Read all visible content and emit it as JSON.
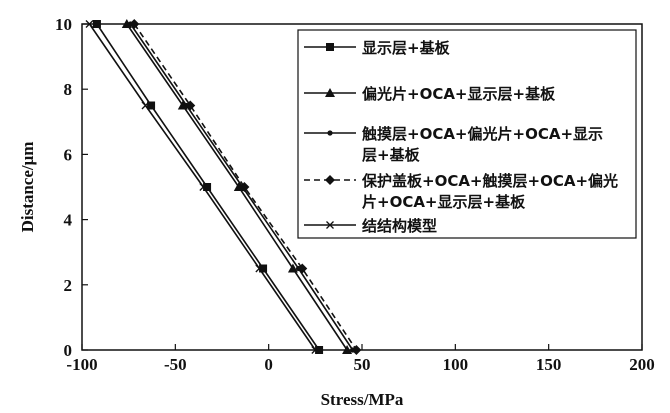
{
  "chart_data": {
    "type": "line",
    "xlabel": "Stress/MPa",
    "ylabel": "Distance/μm",
    "xlim": [
      -100,
      200
    ],
    "ylim": [
      0,
      10
    ],
    "xticks": [
      -100,
      -50,
      0,
      50,
      100,
      150,
      200
    ],
    "yticks": [
      0,
      2,
      4,
      6,
      8,
      10
    ],
    "grid": false,
    "legend_position": "top-right",
    "series": [
      {
        "name": "显示层+基板",
        "marker": "square",
        "dash": "solid",
        "points": [
          [
            -92,
            10
          ],
          [
            -63,
            7.5
          ],
          [
            -33,
            5
          ],
          [
            -3,
            2.5
          ],
          [
            27,
            0
          ]
        ]
      },
      {
        "name": "偏光片+OCA+显示层+基板",
        "marker": "triangle",
        "dash": "solid",
        "points": [
          [
            -76,
            10
          ],
          [
            -46,
            7.5
          ],
          [
            -16,
            5
          ],
          [
            13,
            2.5
          ],
          [
            42,
            0
          ]
        ]
      },
      {
        "name": "触摸层+OCA+偏光片+OCA+显示层+基板",
        "marker": "dot",
        "dash": "solid",
        "points": [
          [
            -74,
            10
          ],
          [
            -44,
            7.5
          ],
          [
            -14,
            5
          ],
          [
            16,
            2.5
          ],
          [
            45,
            0
          ]
        ]
      },
      {
        "name": "保护盖板+OCA+触摸层+OCA+偏光片+OCA+显示层+基板",
        "marker": "diamond",
        "dash": "dashed",
        "points": [
          [
            -72,
            10
          ],
          [
            -42,
            7.5
          ],
          [
            -13,
            5
          ],
          [
            18,
            2.5
          ],
          [
            47,
            0
          ]
        ]
      },
      {
        "name": "结结构模型",
        "marker": "x",
        "dash": "solid",
        "points": [
          [
            -96,
            10
          ],
          [
            -66,
            7.5
          ],
          [
            -35,
            5
          ],
          [
            -5,
            2.5
          ],
          [
            25,
            0
          ]
        ]
      }
    ],
    "legend": [
      {
        "lines": [
          "显示层+基板"
        ]
      },
      {
        "lines": [
          "偏光片+OCA+显示层+基板"
        ]
      },
      {
        "lines": [
          "触摸层+OCA+偏光片+OCA+显示",
          "层+基板"
        ]
      },
      {
        "lines": [
          "保护盖板+OCA+触摸层+OCA+偏光",
          "片+OCA+显示层+基板"
        ]
      },
      {
        "lines": [
          "结结构模型"
        ]
      }
    ]
  }
}
